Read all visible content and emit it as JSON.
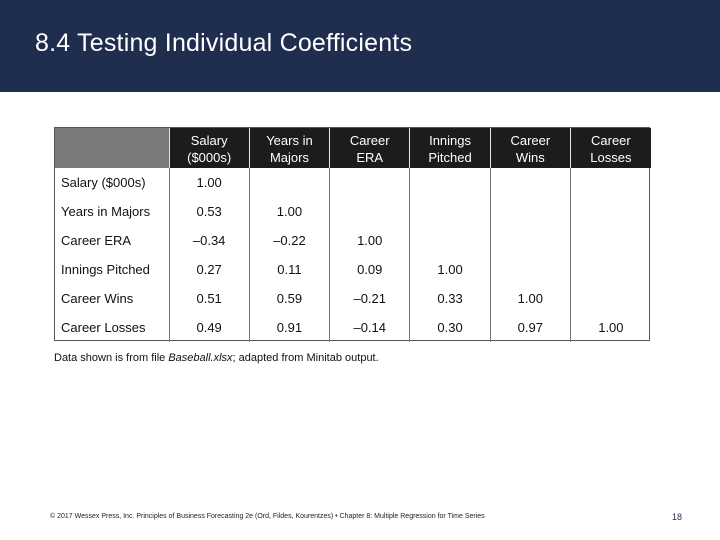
{
  "slide": {
    "title": "8.4 Testing Individual Coefficients"
  },
  "colors": {
    "header_bg": "#1f2d4f",
    "table_header_bg": "#1c1c1c",
    "table_corner_bg": "#7a7a7a"
  },
  "table": {
    "column_headers": [
      [
        "Salary",
        "($000s)"
      ],
      [
        "Years in",
        "Majors"
      ],
      [
        "Career",
        "ERA"
      ],
      [
        "Innings",
        "Pitched"
      ],
      [
        "Career",
        "Wins"
      ],
      [
        "Career",
        "Losses"
      ]
    ],
    "rows": [
      {
        "label": "Salary ($000s)",
        "cells": [
          "1.00",
          "",
          "",
          "",
          "",
          ""
        ]
      },
      {
        "label": "Years in Majors",
        "cells": [
          "0.53",
          "1.00",
          "",
          "",
          "",
          ""
        ]
      },
      {
        "label": "Career ERA",
        "cells": [
          "–0.34",
          "–0.22",
          "1.00",
          "",
          "",
          ""
        ]
      },
      {
        "label": "Innings Pitched",
        "cells": [
          "0.27",
          "0.11",
          "0.09",
          "1.00",
          "",
          ""
        ]
      },
      {
        "label": "Career Wins",
        "cells": [
          "0.51",
          "0.59",
          "–0.21",
          "0.33",
          "1.00",
          ""
        ]
      },
      {
        "label": "Career Losses",
        "cells": [
          "0.49",
          "0.91",
          "–0.14",
          "0.30",
          "0.97",
          "1.00"
        ]
      }
    ]
  },
  "footnote": {
    "prefix": "Data shown is from file ",
    "file": "Baseball.xlsx",
    "suffix": "; adapted from Minitab output."
  },
  "footer": {
    "text": "© 2017 Wessex Press, Inc. Principles of Business Forecasting 2e (Ord, Fildes, Kourentzes) • Chapter 8: Multiple Regression for Time Series",
    "page_number": "18"
  }
}
